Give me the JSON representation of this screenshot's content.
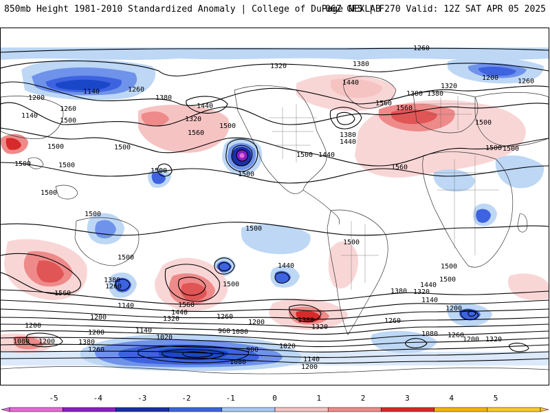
{
  "header": {
    "title": "850mb Height 1981-2010 Standardized Anomaly | College of DuPage NEXLAB",
    "run_info": "06Z GFS | F270 Valid: 12Z SAT APR 05 2025"
  },
  "colorbar": {
    "ticks": [
      "-5",
      "-4",
      "-3",
      "-2",
      "-1",
      "0",
      "1",
      "2",
      "3",
      "4",
      "5"
    ],
    "colors": [
      "#e46bd6",
      "#8a1fc4",
      "#1a2fa8",
      "#3d63e0",
      "#a9c8f2",
      "#ffffff",
      "#f6c3c3",
      "#ee8a8a",
      "#d72a2a",
      "#f4b400",
      "#f7c830"
    ]
  },
  "contour_labels": [
    "1260",
    "1320",
    "1380",
    "1440",
    "1500",
    "1560",
    "1140",
    "1200",
    "1080",
    "1020",
    "960",
    "900"
  ],
  "map_labels": [
    {
      "text": "1260",
      "id": "l1"
    },
    {
      "text": "1320",
      "id": "l2"
    },
    {
      "text": "1380",
      "id": "l3"
    },
    {
      "text": "1440",
      "id": "l4"
    },
    {
      "text": "1380",
      "id": "l5"
    },
    {
      "text": "1320",
      "id": "l6"
    },
    {
      "text": "1200",
      "id": "l7"
    },
    {
      "text": "1260",
      "id": "l8"
    },
    {
      "text": "1140",
      "id": "l9"
    },
    {
      "text": "1260",
      "id": "l10"
    },
    {
      "text": "1200",
      "id": "l11"
    },
    {
      "text": "1380",
      "id": "l12"
    },
    {
      "text": "1320",
      "id": "l13"
    },
    {
      "text": "1440",
      "id": "l14"
    },
    {
      "text": "1500",
      "id": "l15"
    },
    {
      "text": "1560",
      "id": "l16"
    },
    {
      "text": "1500",
      "id": "l17"
    },
    {
      "text": "1500",
      "id": "l18"
    },
    {
      "text": "1500",
      "id": "l19"
    },
    {
      "text": "1500",
      "id": "l20"
    },
    {
      "text": "1380",
      "id": "l21"
    },
    {
      "text": "1440",
      "id": "l22"
    },
    {
      "text": "1500",
      "id": "l23"
    },
    {
      "text": "1440",
      "id": "l24"
    },
    {
      "text": "1560",
      "id": "l25"
    },
    {
      "text": "1380",
      "id": "l26"
    },
    {
      "text": "1560",
      "id": "l27"
    },
    {
      "text": "1500",
      "id": "l28"
    },
    {
      "text": "1500",
      "id": "l29"
    },
    {
      "text": "1500",
      "id": "l30"
    },
    {
      "text": "1500",
      "id": "l31"
    },
    {
      "text": "1500",
      "id": "l32"
    },
    {
      "text": "1560",
      "id": "l33"
    },
    {
      "text": "1560",
      "id": "l34"
    },
    {
      "text": "1380",
      "id": "l35"
    },
    {
      "text": "1260",
      "id": "l36"
    },
    {
      "text": "1500",
      "id": "l37"
    },
    {
      "text": "1440",
      "id": "l38"
    },
    {
      "text": "1440",
      "id": "l39"
    },
    {
      "text": "1380",
      "id": "l40"
    },
    {
      "text": "1320",
      "id": "l41"
    },
    {
      "text": "1440",
      "id": "l42"
    },
    {
      "text": "1500",
      "id": "l43"
    },
    {
      "text": "1140",
      "id": "l44"
    },
    {
      "text": "1200",
      "id": "l45"
    },
    {
      "text": "1200",
      "id": "l46"
    },
    {
      "text": "1320",
      "id": "l47"
    },
    {
      "text": "1260",
      "id": "l48"
    },
    {
      "text": "1200",
      "id": "l49"
    },
    {
      "text": "1380",
      "id": "l50"
    },
    {
      "text": "1320",
      "id": "l51"
    },
    {
      "text": "1260",
      "id": "l52"
    },
    {
      "text": "1200",
      "id": "l53"
    },
    {
      "text": "1140",
      "id": "l54"
    },
    {
      "text": "1080",
      "id": "l55"
    },
    {
      "text": "1020",
      "id": "l56"
    },
    {
      "text": "960",
      "id": "l57"
    },
    {
      "text": "900",
      "id": "l58"
    },
    {
      "text": "1080",
      "id": "l59"
    },
    {
      "text": "1140",
      "id": "l60"
    },
    {
      "text": "1200",
      "id": "l61"
    },
    {
      "text": "1020",
      "id": "l62"
    },
    {
      "text": "1080",
      "id": "l63"
    },
    {
      "text": "1200",
      "id": "l64"
    },
    {
      "text": "1260",
      "id": "l65"
    },
    {
      "text": "1380",
      "id": "l66"
    },
    {
      "text": "1200",
      "id": "l67"
    },
    {
      "text": "1080",
      "id": "l68"
    },
    {
      "text": "1200",
      "id": "l69"
    },
    {
      "text": "1140",
      "id": "l70"
    },
    {
      "text": "1260",
      "id": "l71"
    },
    {
      "text": "1320",
      "id": "l72"
    },
    {
      "text": "1140",
      "id": "l73"
    },
    {
      "text": "1260",
      "id": "l74"
    },
    {
      "text": "1500",
      "id": "l75"
    },
    {
      "text": "1500",
      "id": "l76"
    },
    {
      "text": "1500",
      "id": "l77"
    },
    {
      "text": "1500",
      "id": "l78"
    },
    {
      "text": "1500",
      "id": "l79"
    },
    {
      "text": "1500",
      "id": "l80"
    },
    {
      "text": "1500",
      "id": "l81"
    },
    {
      "text": "1560",
      "id": "l82"
    }
  ]
}
